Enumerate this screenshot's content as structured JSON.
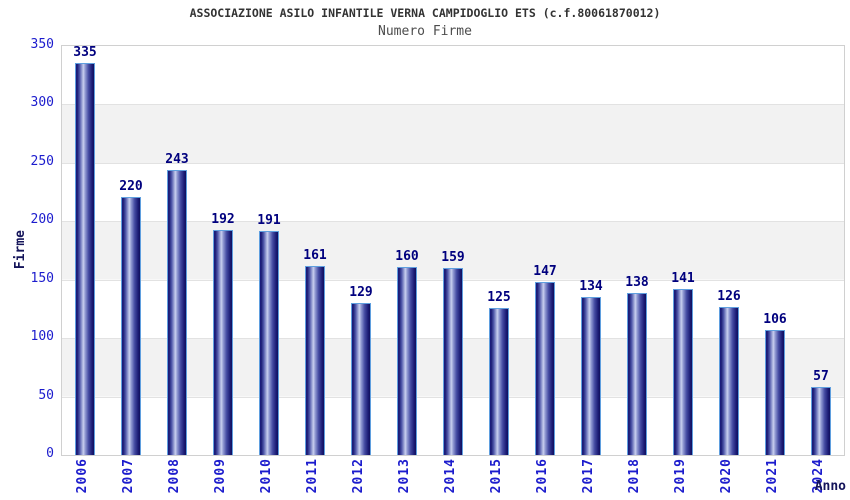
{
  "chart_data": {
    "type": "bar",
    "title": "ASSOCIAZIONE ASILO INFANTILE VERNA CAMPIDOGLIO ETS (c.f.80061870012)",
    "subtitle": "Numero Firme",
    "xlabel": "Anno",
    "ylabel": "Firme",
    "categories": [
      "2006",
      "2007",
      "2008",
      "2009",
      "2010",
      "2011",
      "2012",
      "2013",
      "2014",
      "2015",
      "2016",
      "2017",
      "2018",
      "2019",
      "2020",
      "2021",
      "2024"
    ],
    "values": [
      335,
      220,
      243,
      192,
      191,
      161,
      129,
      160,
      159,
      125,
      147,
      134,
      138,
      141,
      126,
      106,
      57
    ],
    "ylim": [
      0,
      350
    ],
    "yticks": [
      0,
      50,
      100,
      150,
      200,
      250,
      300,
      350
    ],
    "grid": "horizontal-bands-alternating",
    "legend": "none",
    "value_labels": "above-bars",
    "colors": {
      "title": "#333333",
      "subtitle": "#4d4d4d",
      "tick_label": "#1c1ccd",
      "value_label": "#00007e",
      "axis_title": "#14145a",
      "band_gray": "#f2f2f2",
      "gridline": "#e2e2e2",
      "plot_border": "#d0d0d0",
      "bar_border": "#5f9fdf",
      "bar_dark": "#15156e",
      "bar_light": "#c9cfef"
    }
  }
}
